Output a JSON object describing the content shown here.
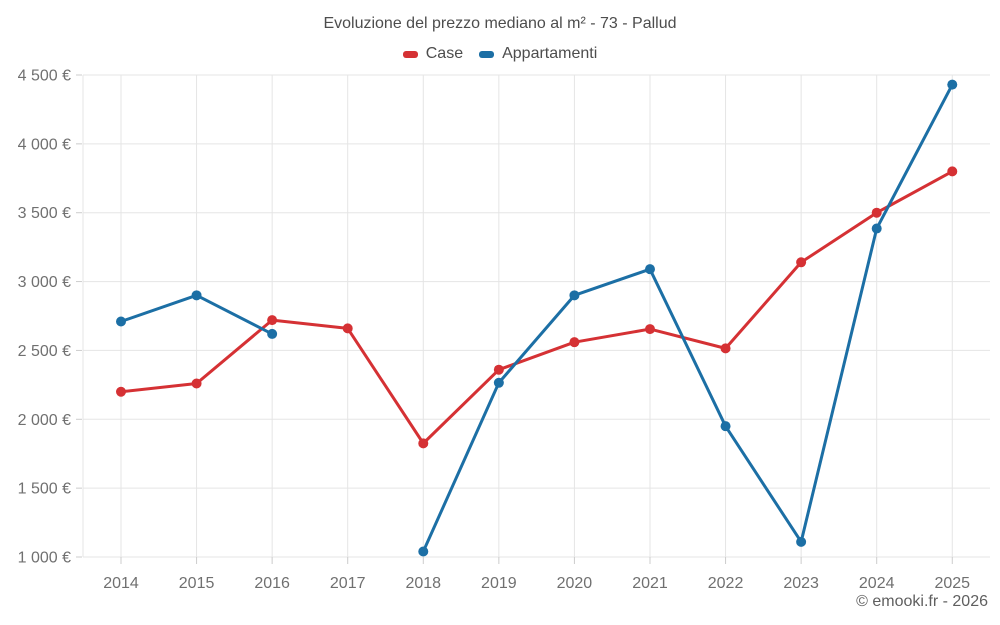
{
  "title": "Evoluzione del prezzo mediano al m² - 73 - Pallud",
  "legend": [
    {
      "label": "Case",
      "color": "#d53134"
    },
    {
      "label": "Appartamenti",
      "color": "#1c6fa5"
    }
  ],
  "copyright": "© emooki.fr - 2026",
  "chart_data": {
    "type": "line",
    "title": "Evoluzione del prezzo mediano al m² - 73 - Pallud",
    "x": [
      "2014",
      "2015",
      "2016",
      "2017",
      "2018",
      "2019",
      "2020",
      "2021",
      "2022",
      "2023",
      "2024",
      "2025"
    ],
    "series": [
      {
        "name": "Case",
        "color": "#d53134",
        "values": [
          2200,
          2260,
          2720,
          2660,
          1825,
          2360,
          2560,
          2655,
          2515,
          3140,
          3500,
          3800
        ]
      },
      {
        "name": "Appartamenti",
        "color": "#1c6fa5",
        "values": [
          2710,
          2900,
          2620,
          null,
          1040,
          2265,
          2900,
          3090,
          1950,
          1110,
          3385,
          4430
        ]
      }
    ],
    "ylim": [
      1000,
      4500
    ],
    "y_tick_step": 500,
    "y_tick_labels": [
      "1 000 €",
      "1 500 €",
      "2 000 €",
      "2 500 €",
      "3 000 €",
      "3 500 €",
      "4 000 €",
      "4 500 €"
    ],
    "xlabel": "",
    "ylabel": "",
    "grid": true,
    "legend_position": "top",
    "colors": {
      "grid_line": "#e5e5e5",
      "tick_mark": "#cccccc",
      "axis_text": "#707070",
      "background": "#ffffff"
    }
  }
}
